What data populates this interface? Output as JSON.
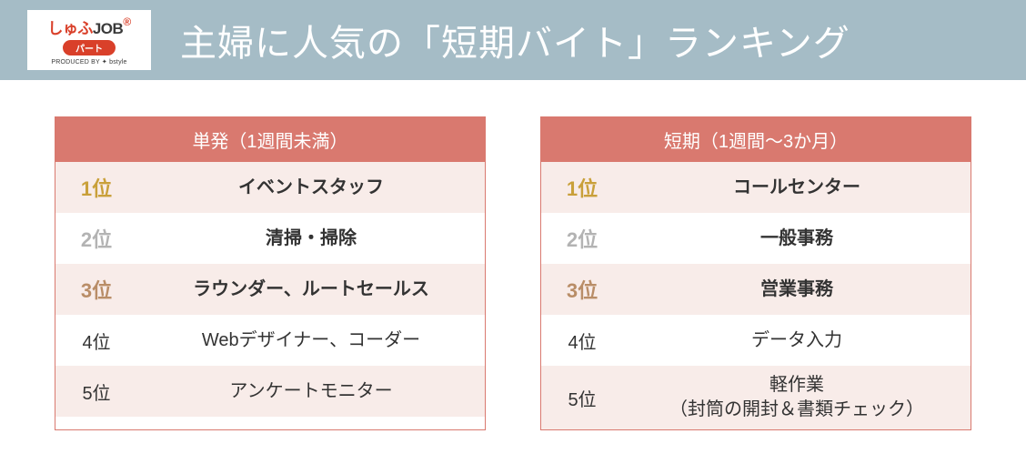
{
  "header": {
    "logo": {
      "line1_parts": {
        "shufu": "しゅふ",
        "job": "JOB"
      },
      "patch": "パート",
      "produced": "PRODUCED BY ✦ bstyle"
    },
    "title": "主婦に人気の「短期バイト」ランキング"
  },
  "tables": [
    {
      "title": "単発（1週間未満）",
      "rows": [
        {
          "rank": "1位",
          "label": "イベントスタッフ"
        },
        {
          "rank": "2位",
          "label": "清掃・掃除"
        },
        {
          "rank": "3位",
          "label": "ラウンダー、ルートセールス"
        },
        {
          "rank": "4位",
          "label": "Webデザイナー、コーダー"
        },
        {
          "rank": "5位",
          "label": "アンケートモニター"
        }
      ]
    },
    {
      "title": "短期（1週間～3か月）",
      "rows": [
        {
          "rank": "1位",
          "label": "コールセンター"
        },
        {
          "rank": "2位",
          "label": "一般事務"
        },
        {
          "rank": "3位",
          "label": "営業事務"
        },
        {
          "rank": "4位",
          "label": "データ入力"
        },
        {
          "rank": "5位",
          "label": "軽作業\n（封筒の開封＆書類チェック）"
        }
      ]
    }
  ],
  "style": {
    "header_bg": "#a5bcc6",
    "title_color": "#ffffff",
    "table_border": "#d9796f",
    "table_header_bg": "#d9796f",
    "row_alt_bg": "#f8ece9",
    "row_plain_bg": "#ffffff",
    "rank_colors": {
      "1": "#c9a03a",
      "2": "#b3b3b3",
      "3": "#b98d67",
      "n": "#333333"
    },
    "logo_red": "#d9402a"
  }
}
